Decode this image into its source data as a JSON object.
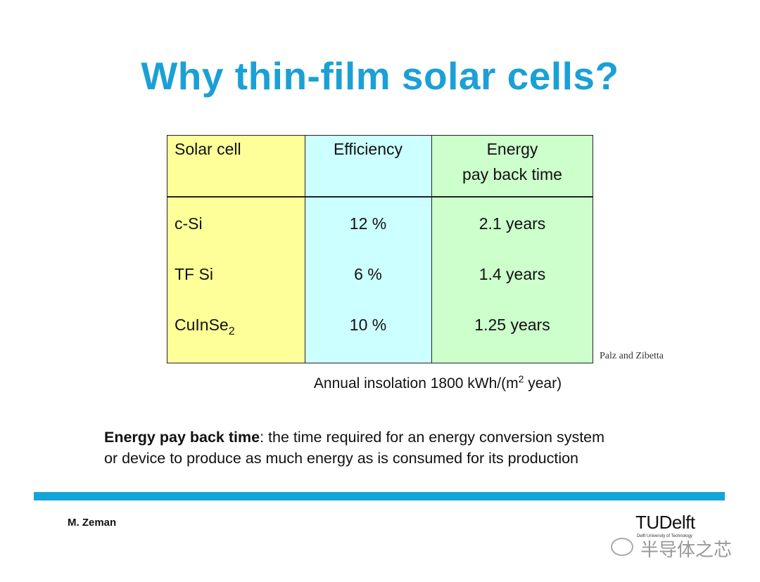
{
  "title": "Why thin-film solar cells?",
  "table": {
    "headers": [
      [
        "Solar cell"
      ],
      [
        "Efficiency"
      ],
      [
        "Energy",
        "pay back time"
      ]
    ],
    "rows": [
      [
        {
          "text": "c-Si"
        },
        "12 %",
        "2.1 years"
      ],
      [
        {
          "text": "TF Si"
        },
        "6 %",
        "1.4 years"
      ],
      [
        {
          "text": "CuInSe",
          "sub": "2"
        },
        "10 %",
        "1.25 years"
      ]
    ]
  },
  "source": "Palz and Zibetta",
  "insolation": {
    "before": "Annual insolation 1800 kWh/(m",
    "sup": "2",
    "after": " year)"
  },
  "definition": {
    "term": "Energy pay back time",
    "lines": [
      ": the time required for an energy conversion system",
      "or device to produce as much energy as is consumed for its production"
    ]
  },
  "footer": {
    "author": "M.  Zeman",
    "logo": "TUDelft",
    "logo_sub": "Delft University of Technology",
    "watermark": "半导体之芯"
  }
}
